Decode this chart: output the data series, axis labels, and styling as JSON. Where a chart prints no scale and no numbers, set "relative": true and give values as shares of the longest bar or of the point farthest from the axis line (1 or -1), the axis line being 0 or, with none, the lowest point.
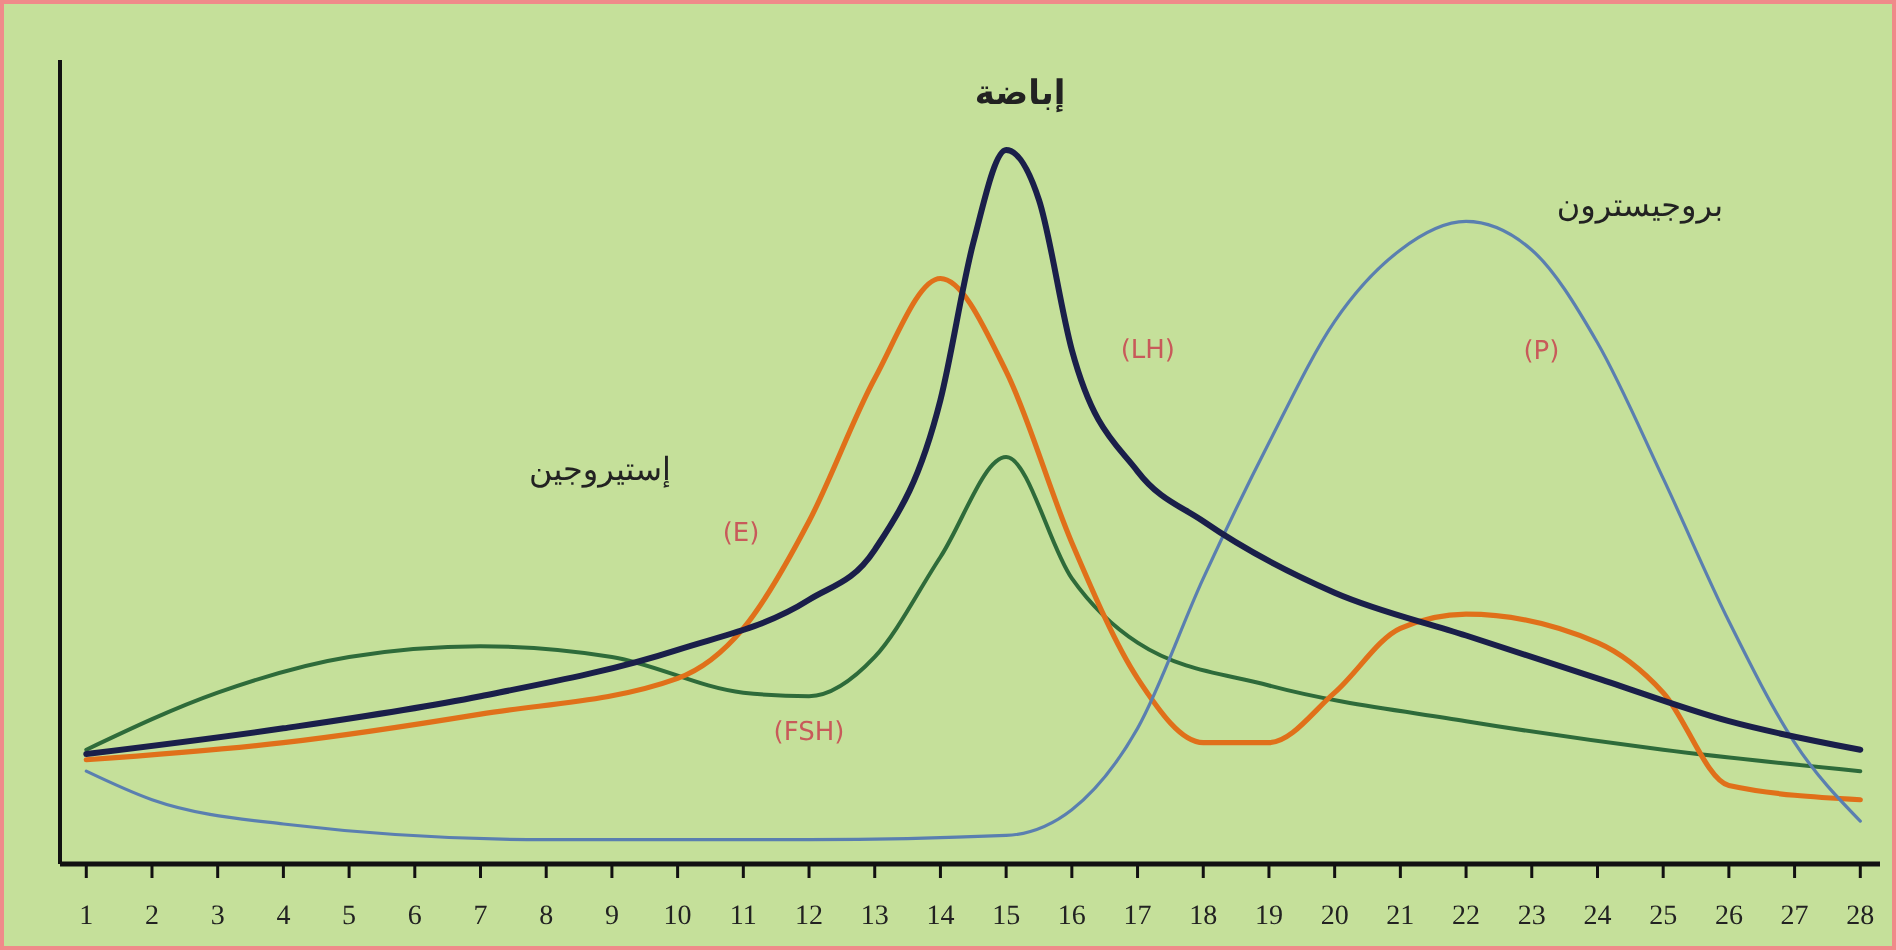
{
  "chart_data": {
    "type": "line",
    "relative": true,
    "xlim": [
      0.6,
      28.3
    ],
    "xticks": [
      1,
      2,
      3,
      4,
      5,
      6,
      7,
      8,
      9,
      10,
      11,
      12,
      13,
      14,
      15,
      16,
      17,
      18,
      19,
      20,
      21,
      22,
      23,
      24,
      25,
      26,
      27,
      28
    ],
    "grid": false,
    "line_style": "solid",
    "series": [
      {
        "name": "(FSH)",
        "color": "#2e6b3a",
        "x": [
          1,
          3,
          5,
          7,
          9,
          11,
          12,
          13,
          14,
          15,
          16,
          17,
          19,
          22,
          25,
          28
        ],
        "values": [
          0.16,
          0.24,
          0.29,
          0.305,
          0.29,
          0.24,
          0.235,
          0.29,
          0.43,
          0.57,
          0.4,
          0.31,
          0.25,
          0.2,
          0.16,
          0.13
        ]
      },
      {
        "name": "(E)",
        "color": "#e0701a",
        "x": [
          1,
          4,
          7,
          10,
          11,
          12,
          13,
          14,
          15,
          16,
          17,
          18,
          19,
          20,
          21,
          22,
          24,
          25,
          26,
          28
        ],
        "values": [
          0.146,
          0.17,
          0.21,
          0.26,
          0.33,
          0.48,
          0.68,
          0.82,
          0.69,
          0.45,
          0.26,
          0.17,
          0.17,
          0.24,
          0.33,
          0.35,
          0.31,
          0.24,
          0.11,
          0.09
        ]
      },
      {
        "name": "(P)",
        "color": "#5a7fb0",
        "x": [
          1,
          2,
          4,
          8,
          12,
          15,
          16,
          17,
          18,
          19,
          20,
          21,
          22,
          23,
          24,
          25,
          26,
          27,
          28
        ],
        "values": [
          0.13,
          0.09,
          0.056,
          0.034,
          0.034,
          0.04,
          0.076,
          0.19,
          0.4,
          0.59,
          0.76,
          0.86,
          0.9,
          0.86,
          0.73,
          0.54,
          0.34,
          0.17,
          0.06
        ]
      },
      {
        "name": "(LH)",
        "color": "#1a1f4a",
        "x": [
          1,
          4,
          7,
          10,
          12,
          13,
          14,
          14.5,
          15,
          15.5,
          16,
          17,
          18,
          20,
          22,
          24,
          26,
          28
        ],
        "values": [
          0.154,
          0.19,
          0.235,
          0.3,
          0.37,
          0.44,
          0.65,
          0.87,
          1,
          0.93,
          0.72,
          0.55,
          0.48,
          0.38,
          0.32,
          0.26,
          0.2,
          0.16
        ]
      }
    ],
    "annotations": [
      "إباضة",
      "إستيروجين",
      "بروجيسترون"
    ]
  }
}
